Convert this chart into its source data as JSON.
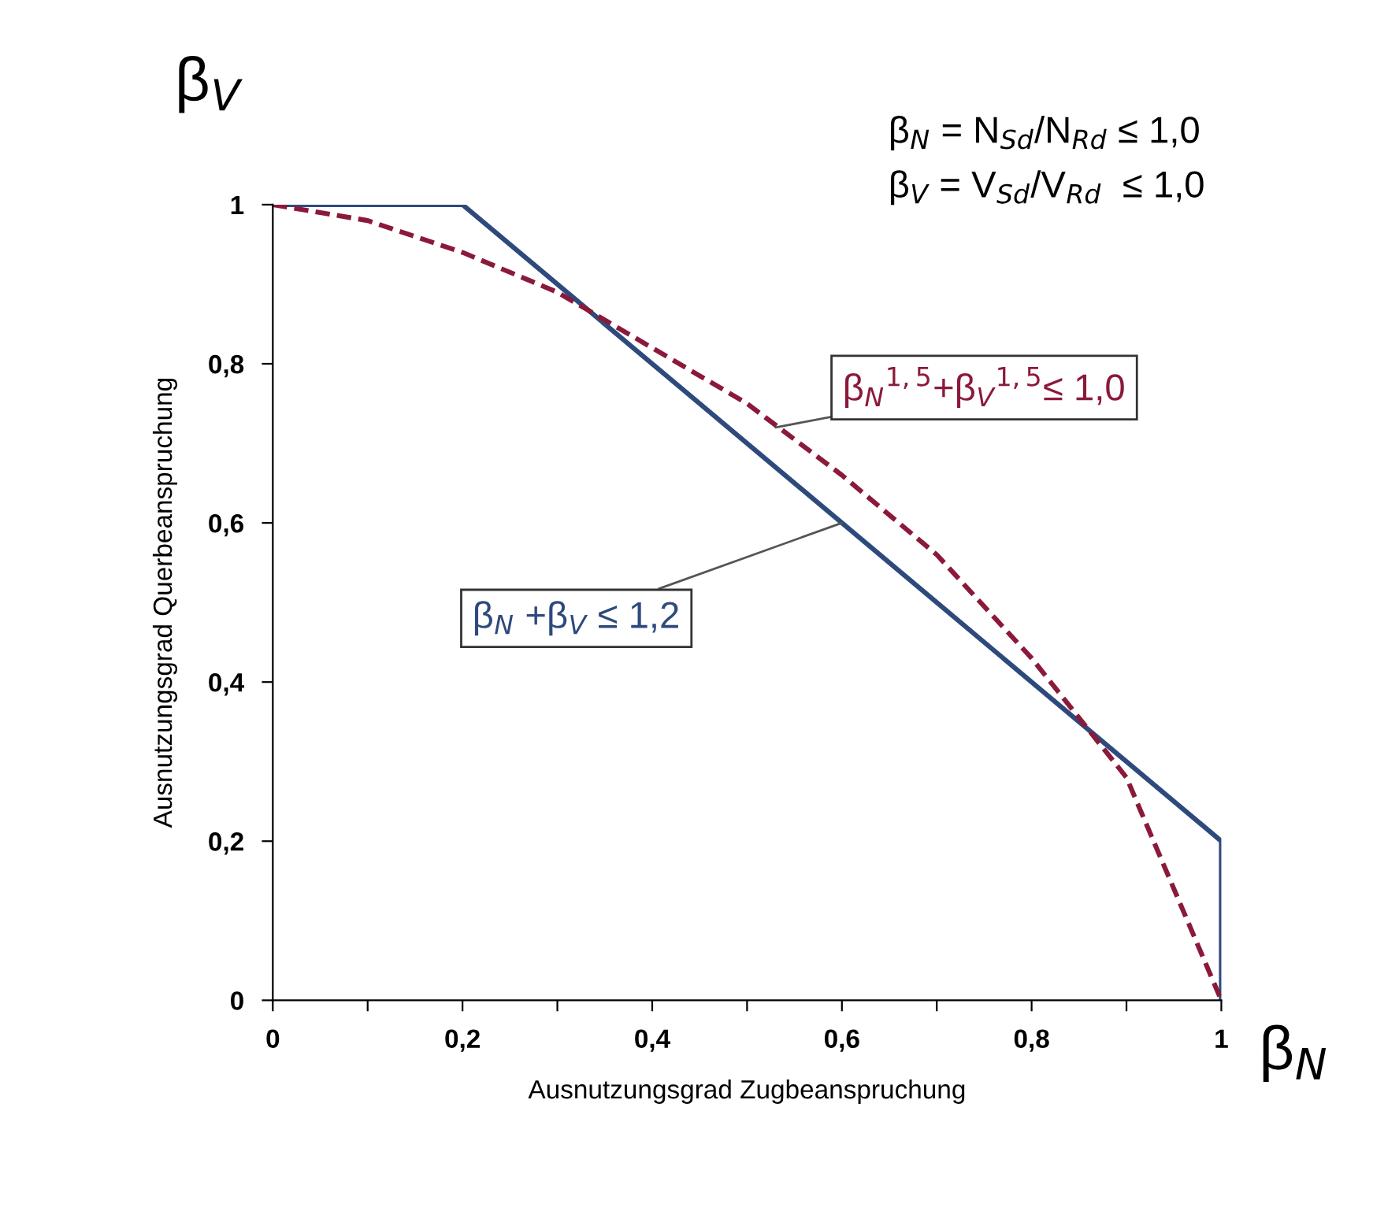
{
  "chart_data": {
    "type": "line",
    "xlabel": "Ausnutzungsgrad Zugbeanspruchung",
    "ylabel": "Ausnutzungsgrad Querbeanspruchung",
    "series": [
      {
        "color": "#2e4a7d",
        "line_style": "solid",
        "x": [
          0,
          0.2,
          1,
          1
        ],
        "values": [
          1,
          1,
          0.2,
          0
        ]
      },
      {
        "color": "#8b1a3a",
        "line_style": "dashed",
        "x": [
          0,
          0.1,
          0.2,
          0.3,
          0.4,
          0.5,
          0.6,
          0.7,
          0.8,
          0.9,
          1
        ],
        "values": [
          1,
          0.98,
          0.94,
          0.89,
          0.82,
          0.75,
          0.66,
          0.56,
          0.43,
          0.28,
          0
        ]
      }
    ],
    "xlim": [
      0,
      1
    ],
    "ylim": [
      0,
      1
    ],
    "xticks": [
      0,
      {
        "value": 0.1,
        "label": null
      },
      {
        "value": 0.2,
        "label": "0,2"
      },
      {
        "value": 0.3,
        "label": null
      },
      {
        "value": 0.4,
        "label": "0,4"
      },
      {
        "value": 0.5,
        "label": null
      },
      {
        "value": 0.6,
        "label": "0,6"
      },
      {
        "value": 0.7,
        "label": null
      },
      {
        "value": 0.8,
        "label": "0,8"
      },
      {
        "value": 0.9,
        "label": null
      },
      1
    ],
    "yticks": [
      0,
      {
        "value": 0.2,
        "label": "0,2"
      },
      {
        "value": 0.4,
        "label": "0,4"
      },
      {
        "value": 0.6,
        "label": "0,6"
      },
      {
        "value": 0.8,
        "label": "0,8"
      },
      1
    ],
    "annotations": [
      "β$_{V}$",
      "β$_{N}$",
      "β$_{N}$ = N$_{Sd}$/N$_{Rd}$ ≤ 1,0",
      "β$_{V}$ = V$_{Sd}$/V$_{Rd}$  ≤ 1,0",
      {
        "text": "β$_{N}$$^{1,5}$+β$_{V}$$^{1,5}$≤ 1,0",
        "x": 0.53,
        "y": 0.72
      },
      {
        "text": "β$_{N}$ +β$_{V}$ ≤ 1,2",
        "x": 0.6,
        "y": 0.6
      }
    ],
    "grid": false,
    "legend": false
  }
}
